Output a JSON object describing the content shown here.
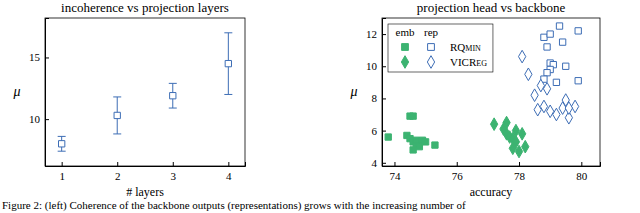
{
  "chart_data": [
    {
      "type": "scatter",
      "title": "incoherence vs projection layers",
      "x_label": "# layers",
      "y_label": "μ",
      "xlim": [
        0.7,
        4.3
      ],
      "xticks": [
        1,
        2,
        3,
        4
      ],
      "ylim": [
        6.2,
        18.2
      ],
      "yticks": [
        10,
        15
      ],
      "grid": false,
      "series": [
        {
          "color": "#3d6db5",
          "marker": "square-open",
          "x": [
            1,
            2,
            3,
            4
          ],
          "values": [
            8.0,
            10.3,
            11.9,
            14.5
          ],
          "errors": [
            0.6,
            1.5,
            1.0,
            2.5
          ]
        }
      ]
    },
    {
      "type": "scatter",
      "title": "projection head vs backbone",
      "x_label": "accuracy",
      "y_label": "μ",
      "xlim": [
        73.6,
        80.6
      ],
      "xticks": [
        74,
        76,
        78,
        80
      ],
      "ylim": [
        3.8,
        13
      ],
      "yticks": [
        4,
        6,
        8,
        10,
        12
      ],
      "grid": false,
      "legend": "upper-left",
      "series": [
        {
          "name": "RQmin",
          "column": "emb",
          "color": "#3cb371",
          "marker": "square",
          "x": [
            73.8,
            74.4,
            74.5,
            74.6,
            74.5,
            74.6,
            74.7,
            74.8,
            74.9,
            75.0,
            74.6,
            75.3,
            74.7
          ],
          "values": [
            5.6,
            5.7,
            6.9,
            6.9,
            5.5,
            5.3,
            5.1,
            5.0,
            5.4,
            5.3,
            4.8,
            5.1,
            5.4
          ]
        },
        {
          "name": "RQmin",
          "column": "rep",
          "color": "#3d6db5",
          "marker": "square-open",
          "x": [
            78.8,
            79.0,
            78.9,
            79.3,
            79.0,
            79.1,
            79.0,
            78.9,
            79.2,
            79.9,
            79.5,
            79.4,
            78.8,
            79.9
          ],
          "values": [
            11.8,
            12.0,
            11.2,
            12.5,
            10.2,
            10.1,
            9.8,
            9.6,
            9.0,
            9.1,
            10.0,
            11.5,
            9.2,
            12.2
          ]
        },
        {
          "name": "VICReg",
          "column": "emb",
          "color": "#3cb371",
          "marker": "diamond",
          "x": [
            77.2,
            77.5,
            77.6,
            77.7,
            77.8,
            77.9,
            77.8,
            78.0,
            77.6,
            77.9,
            78.1,
            78.2
          ],
          "values": [
            6.4,
            6.1,
            5.8,
            5.6,
            5.5,
            5.3,
            4.9,
            4.7,
            6.5,
            6.0,
            5.8,
            5.0
          ]
        },
        {
          "name": "VICReg",
          "column": "rep",
          "color": "#3d6db5",
          "marker": "diamond-open",
          "x": [
            78.1,
            78.3,
            78.5,
            78.6,
            78.8,
            79.0,
            79.2,
            79.4,
            79.6,
            79.8,
            78.9,
            79.5,
            79.6,
            78.7
          ],
          "values": [
            10.6,
            9.5,
            8.2,
            7.3,
            7.5,
            7.2,
            7.0,
            7.4,
            6.8,
            7.5,
            8.6,
            7.9,
            7.4,
            8.8
          ]
        }
      ]
    }
  ],
  "caption": "Figure 2: (left) Coherence of the backbone outputs (representations) grows with the increasing number of"
}
